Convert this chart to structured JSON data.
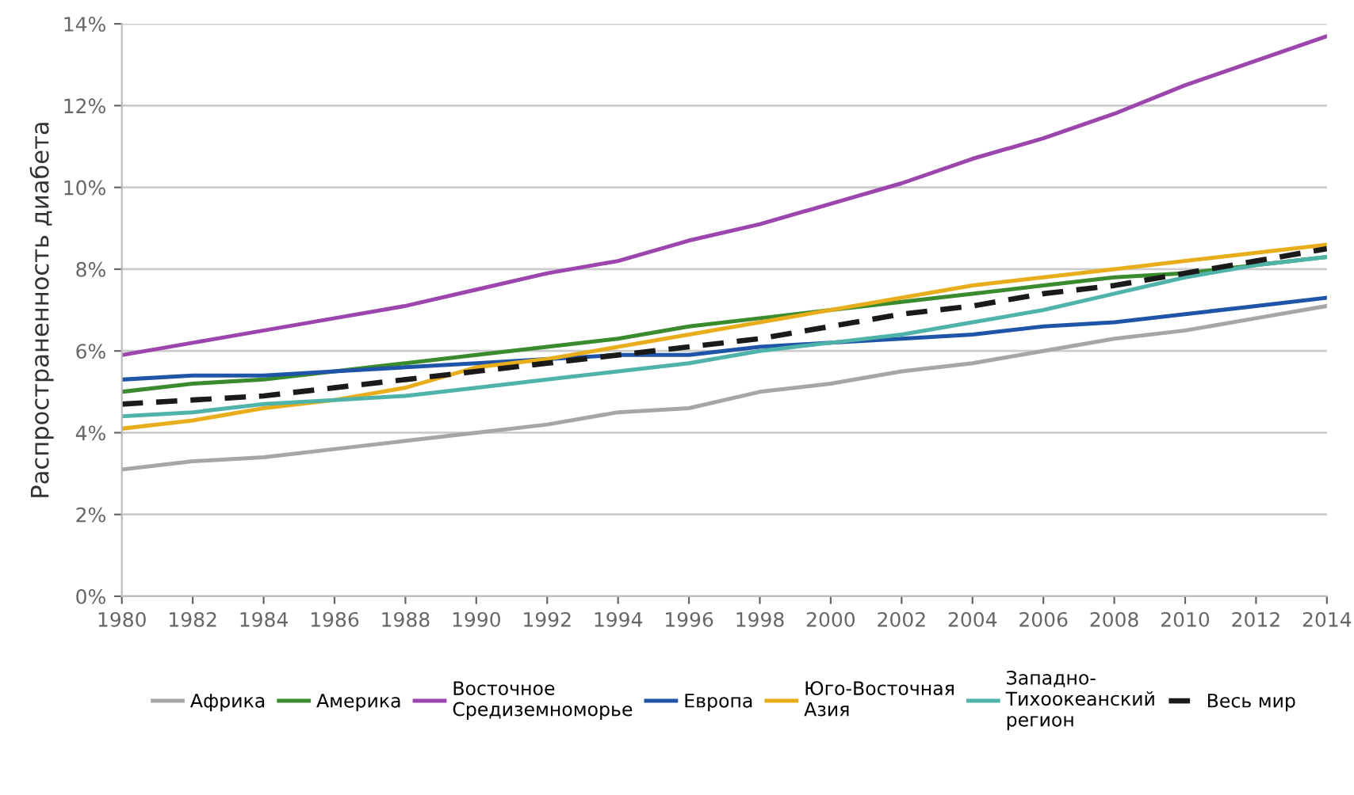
{
  "chart_data": {
    "type": "line",
    "ylabel": "Распространенность диабета",
    "x": [
      1980,
      1982,
      1984,
      1986,
      1988,
      1990,
      1992,
      1994,
      1996,
      1998,
      2000,
      2002,
      2004,
      2006,
      2008,
      2010,
      2012,
      2014
    ],
    "series": [
      {
        "name": "Африка",
        "color": "#a6a6a6",
        "values": [
          3.1,
          3.3,
          3.4,
          3.6,
          3.8,
          4.0,
          4.2,
          4.5,
          4.6,
          5.0,
          5.2,
          5.5,
          5.7,
          6.0,
          6.3,
          6.5,
          6.8,
          7.1
        ]
      },
      {
        "name": "Америка",
        "color": "#3a8a2e",
        "values": [
          5.0,
          5.2,
          5.3,
          5.5,
          5.7,
          5.9,
          6.1,
          6.3,
          6.6,
          6.8,
          7.0,
          7.2,
          7.4,
          7.6,
          7.8,
          7.9,
          8.1,
          8.3
        ]
      },
      {
        "name": "Восточное\nСредиземноморье",
        "color": "#9b45ad",
        "values": [
          5.9,
          6.2,
          6.5,
          6.8,
          7.1,
          7.5,
          7.9,
          8.2,
          8.7,
          9.1,
          9.6,
          10.1,
          10.7,
          11.2,
          11.8,
          12.5,
          13.1,
          13.7
        ]
      },
      {
        "name": "Европа",
        "color": "#1f55a8",
        "values": [
          5.3,
          5.4,
          5.4,
          5.5,
          5.6,
          5.7,
          5.8,
          5.9,
          5.9,
          6.1,
          6.2,
          6.3,
          6.4,
          6.6,
          6.7,
          6.9,
          7.1,
          7.3
        ]
      },
      {
        "name": "Юго-Восточная\nАзия",
        "color": "#e8ad1a",
        "values": [
          4.1,
          4.3,
          4.6,
          4.8,
          5.1,
          5.6,
          5.8,
          6.1,
          6.4,
          6.7,
          7.0,
          7.3,
          7.6,
          7.8,
          8.0,
          8.2,
          8.4,
          8.6
        ]
      },
      {
        "name": "Западно-\nТихоокеанский\nрегион",
        "color": "#4fb3a9",
        "values": [
          4.4,
          4.5,
          4.7,
          4.8,
          4.9,
          5.1,
          5.3,
          5.5,
          5.7,
          6.0,
          6.2,
          6.4,
          6.7,
          7.0,
          7.4,
          7.8,
          8.1,
          8.3
        ]
      },
      {
        "name": "Весь мир",
        "color": "#1a1a1a",
        "line_style": "dashed",
        "values": [
          4.7,
          4.8,
          4.9,
          5.1,
          5.3,
          5.5,
          5.7,
          5.9,
          6.1,
          6.3,
          6.6,
          6.9,
          7.1,
          7.4,
          7.6,
          7.9,
          8.2,
          8.5
        ]
      }
    ],
    "xlim": [
      1980,
      2014
    ],
    "xticks": [
      1980,
      1982,
      1984,
      1986,
      1988,
      1990,
      1992,
      1994,
      1996,
      1998,
      2000,
      2002,
      2004,
      2006,
      2008,
      2010,
      2012,
      2014
    ],
    "ylim": [
      0,
      14
    ],
    "yticks": [
      {
        "value": 0,
        "label": "0%"
      },
      {
        "value": 2,
        "label": "2%"
      },
      {
        "value": 4,
        "label": "4%"
      },
      {
        "value": 6,
        "label": "6%"
      },
      {
        "value": 8,
        "label": "8%"
      },
      {
        "value": 10,
        "label": "10%"
      },
      {
        "value": 12,
        "label": "12%"
      },
      {
        "value": 14,
        "label": "14%"
      }
    ],
    "grid": "y",
    "legend": "bottom",
    "line_style": "solid"
  }
}
